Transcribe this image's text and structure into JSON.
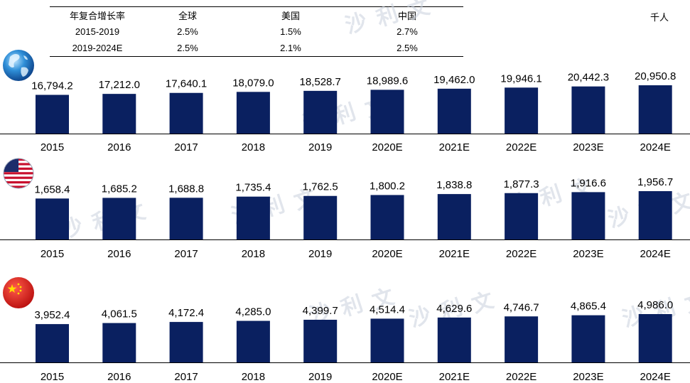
{
  "unit": "千人",
  "cagr_table": {
    "headers": [
      "年复合增长率",
      "全球",
      "美国",
      "中国"
    ],
    "rows": [
      [
        "2015-2019",
        "2.5%",
        "1.5%",
        "2.7%"
      ],
      [
        "2019-2024E",
        "2.5%",
        "2.1%",
        "2.5%"
      ]
    ]
  },
  "watermark": "沙利文",
  "colors": {
    "bar": "#0a2060",
    "axis": "#000000"
  },
  "icons": [
    "globe-icon",
    "us-flag-icon",
    "china-flag-icon"
  ],
  "chart_data": [
    {
      "type": "bar",
      "title": "全球",
      "categories": [
        "2015",
        "2016",
        "2017",
        "2018",
        "2019",
        "2020E",
        "2021E",
        "2022E",
        "2023E",
        "2024E"
      ],
      "values": [
        16794.2,
        17212.0,
        17640.1,
        18079.0,
        18528.7,
        18989.6,
        19462.0,
        19946.1,
        20442.3,
        20950.8
      ],
      "labels": [
        "16,794.2",
        "17,212.0",
        "17,640.1",
        "18,079.0",
        "18,528.7",
        "18,989.6",
        "19,462.0",
        "19,946.1",
        "20,442.3",
        "20,950.8"
      ],
      "unit": "千人"
    },
    {
      "type": "bar",
      "title": "美国",
      "categories": [
        "2015",
        "2016",
        "2017",
        "2018",
        "2019",
        "2020E",
        "2021E",
        "2022E",
        "2023E",
        "2024E"
      ],
      "values": [
        1658.4,
        1685.2,
        1688.8,
        1735.4,
        1762.5,
        1800.2,
        1838.8,
        1877.3,
        1916.6,
        1956.7
      ],
      "labels": [
        "1,658.4",
        "1,685.2",
        "1,688.8",
        "1,735.4",
        "1,762.5",
        "1,800.2",
        "1,838.8",
        "1,877.3",
        "1,916.6",
        "1,956.7"
      ],
      "unit": "千人"
    },
    {
      "type": "bar",
      "title": "中国",
      "categories": [
        "2015",
        "2016",
        "2017",
        "2018",
        "2019",
        "2020E",
        "2021E",
        "2022E",
        "2023E",
        "2024E"
      ],
      "values": [
        3952.4,
        4061.5,
        4172.4,
        4285.0,
        4399.7,
        4514.4,
        4629.6,
        4746.7,
        4865.4,
        4986.0
      ],
      "labels": [
        "3,952.4",
        "4,061.5",
        "4,172.4",
        "4,285.0",
        "4,399.7",
        "4,514.4",
        "4,629.6",
        "4,746.7",
        "4,865.4",
        "4,986.0"
      ],
      "unit": "千人"
    }
  ]
}
